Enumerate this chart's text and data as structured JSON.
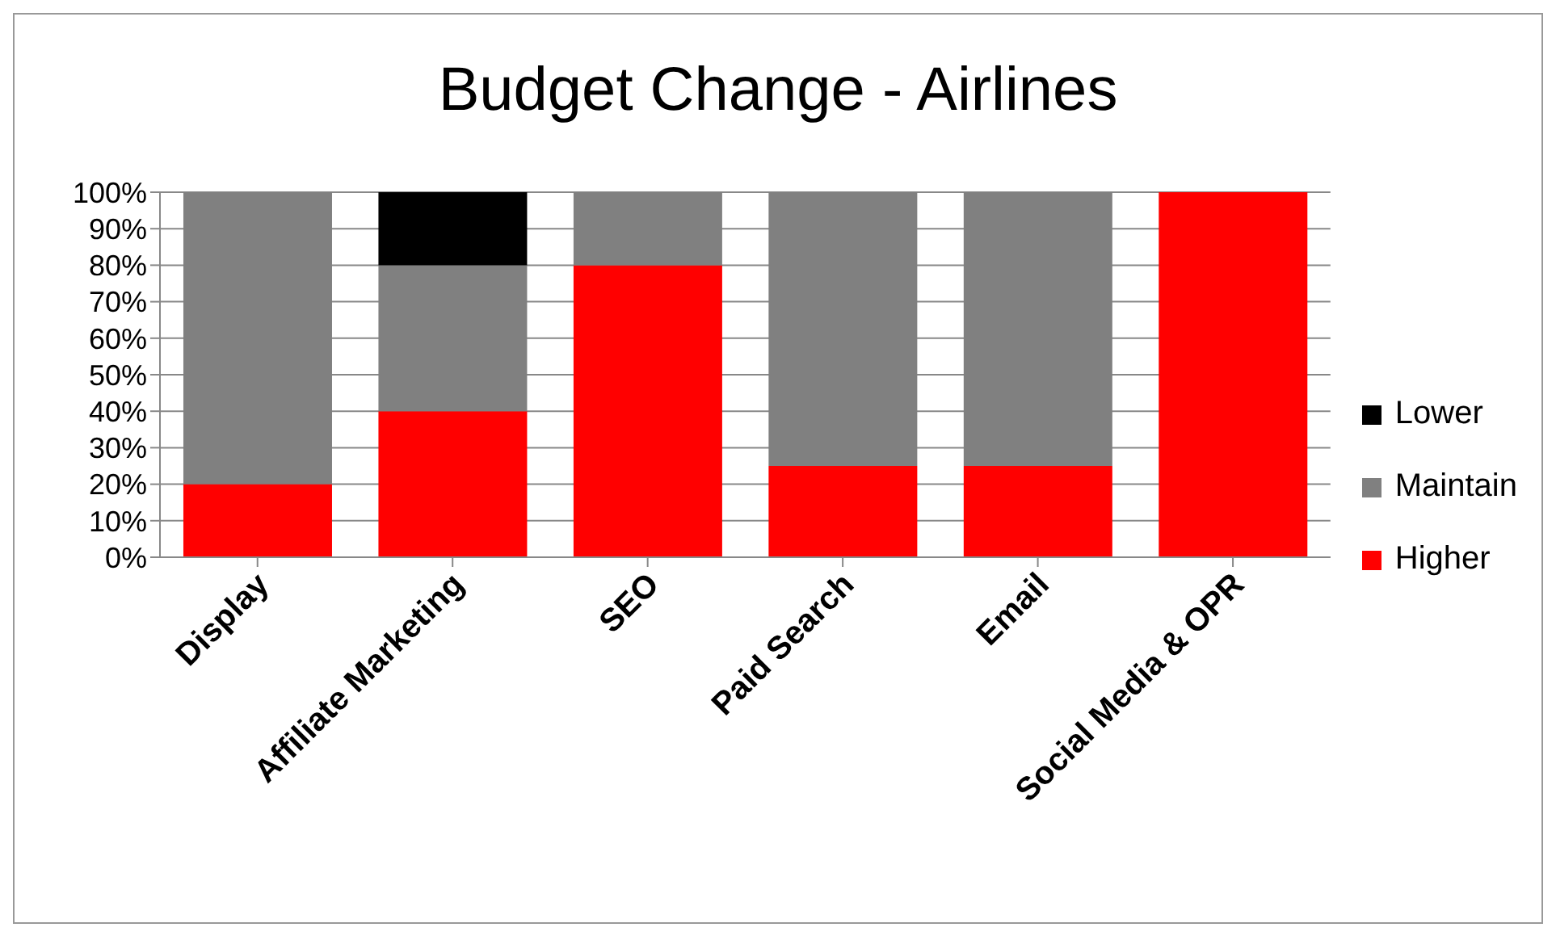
{
  "chart_data": {
    "type": "bar",
    "title": "Budget Change - Airlines",
    "stacked": true,
    "categories": [
      "Display",
      "Affiliate Marketing",
      "SEO",
      "Paid Search",
      "Email",
      "Social Media & OPR"
    ],
    "series": [
      {
        "name": "Higher",
        "color": "#ff0000",
        "values": [
          20,
          40,
          80,
          25,
          25,
          100
        ]
      },
      {
        "name": "Maintain",
        "color": "#808080",
        "values": [
          80,
          40,
          20,
          75,
          75,
          0
        ]
      },
      {
        "name": "Lower",
        "color": "#000000",
        "values": [
          0,
          20,
          0,
          0,
          0,
          0
        ]
      }
    ],
    "ylim": [
      0,
      100
    ],
    "yticks": [
      {
        "value": 0,
        "label": "0%"
      },
      {
        "value": 10,
        "label": "10%"
      },
      {
        "value": 20,
        "label": "20%"
      },
      {
        "value": 30,
        "label": "30%"
      },
      {
        "value": 40,
        "label": "40%"
      },
      {
        "value": 50,
        "label": "50%"
      },
      {
        "value": 60,
        "label": "60%"
      },
      {
        "value": 70,
        "label": "70%"
      },
      {
        "value": 80,
        "label": "80%"
      },
      {
        "value": 90,
        "label": "90%"
      },
      {
        "value": 100,
        "label": "100%"
      }
    ],
    "grid": "y",
    "legend": "right"
  }
}
